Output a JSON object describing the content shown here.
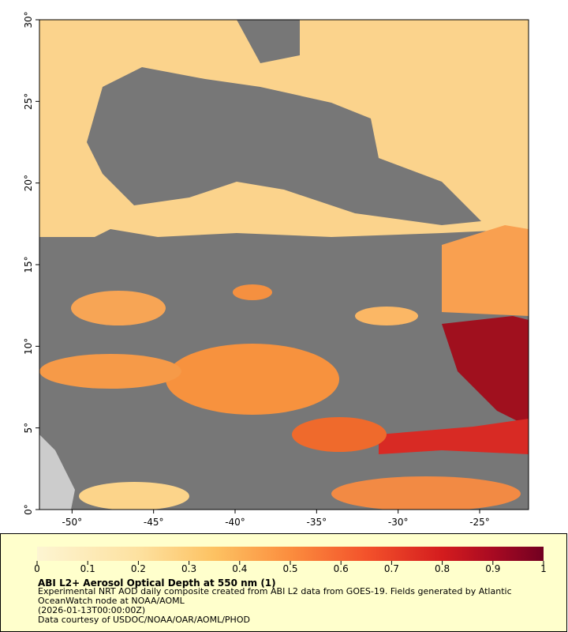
{
  "chart_data": {
    "type": "map",
    "title": "ABI L2+ Aerosol Optical Depth at 550 nm (1)",
    "description": "Experimental NRT AOD daily composite created from ABI L2 data from GOES-19. Fields generated by Atlantic OceanWatch node at NOAA/AOML",
    "time": "(2026-01-13T00:00:00Z)",
    "credit": "Data courtesy of USDOC/NOAA/OAR/AOML/PHOD",
    "xlim": [
      -52,
      -22
    ],
    "ylim": [
      0,
      30
    ],
    "xticks": [
      {
        "value": -50,
        "label": "-50°"
      },
      {
        "value": -45,
        "label": "-45°"
      },
      {
        "value": -40,
        "label": "-40°"
      },
      {
        "value": -35,
        "label": "-35°"
      },
      {
        "value": -30,
        "label": "-30°"
      },
      {
        "value": -25,
        "label": "-25°"
      }
    ],
    "yticks": [
      {
        "value": 0,
        "label": "0°"
      },
      {
        "value": 5,
        "label": "5°"
      },
      {
        "value": 10,
        "label": "10°"
      },
      {
        "value": 15,
        "label": "15°"
      },
      {
        "value": 20,
        "label": "20°"
      },
      {
        "value": 25,
        "label": "25°"
      },
      {
        "value": 30,
        "label": "30°"
      }
    ],
    "colorbar": {
      "lim": [
        0,
        1
      ],
      "ticks": [
        0,
        0.1,
        0.2,
        0.3,
        0.4,
        0.5,
        0.6,
        0.7,
        0.8,
        0.9,
        1
      ]
    }
  }
}
